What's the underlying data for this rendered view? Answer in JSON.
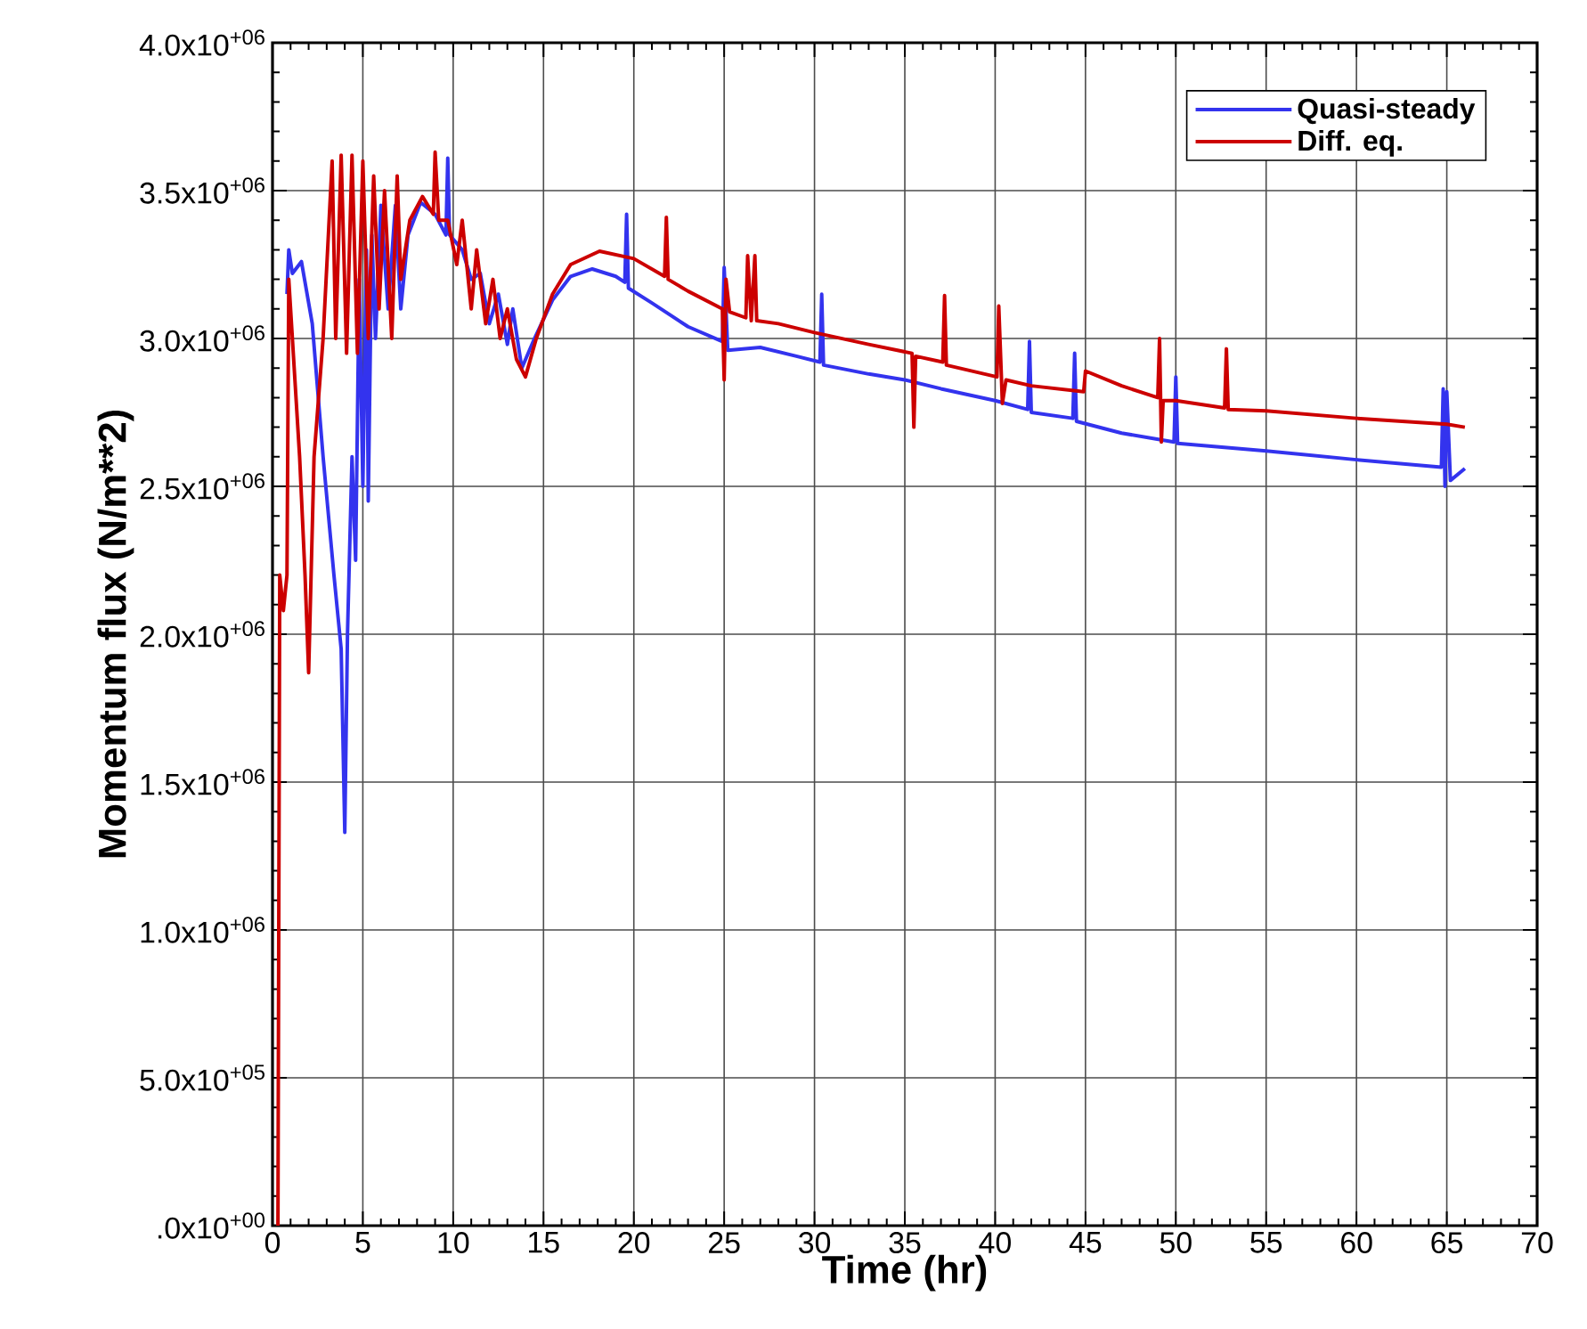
{
  "chart_data": {
    "type": "line",
    "xlabel": "Time (hr)",
    "ylabel": "Momentum flux (N/m**2)",
    "xlim": [
      0,
      70
    ],
    "ylim": [
      0,
      4000000
    ],
    "xticks": [
      0,
      5,
      10,
      15,
      20,
      25,
      30,
      35,
      40,
      45,
      50,
      55,
      60,
      65,
      70
    ],
    "yticks": [
      {
        "value": 0,
        "label": ".0x10$^{+00}$"
      },
      {
        "value": 500000,
        "label": "5.0x10$^{+05}$"
      },
      {
        "value": 1000000,
        "label": "1.0x10$^{+06}$"
      },
      {
        "value": 1500000,
        "label": "1.5x10$^{+06}$"
      },
      {
        "value": 2000000,
        "label": "2.0x10$^{+06}$"
      },
      {
        "value": 2500000,
        "label": "2.5x10$^{+06}$"
      },
      {
        "value": 3000000,
        "label": "3.0x10$^{+06}$"
      },
      {
        "value": 3500000,
        "label": "3.5x10$^{+06}$"
      },
      {
        "value": 4000000,
        "label": "4.0x10$^{+06}$"
      }
    ],
    "grid": true,
    "legend": "top right",
    "marker": "none",
    "line_style": "solid",
    "series": [
      {
        "name": "Quasi-steady",
        "color": "#3333ee",
        "x": [
          0.8,
          0.9,
          1.1,
          1.6,
          2.2,
          2.8,
          3.4,
          3.8,
          4.0,
          4.15,
          4.4,
          4.6,
          4.8,
          5.0,
          5.2,
          5.3,
          5.5,
          5.7,
          6.0,
          6.4,
          6.8,
          7.1,
          7.5,
          8.2,
          9.0,
          9.6,
          9.7,
          9.8,
          10.5,
          11,
          11.5,
          12,
          12.5,
          13,
          13.3,
          13.8,
          14.5,
          15.5,
          16.5,
          17.7,
          19.0,
          19.5,
          19.6,
          19.7,
          21,
          23,
          24.9,
          25,
          25.2,
          27,
          29,
          30.3,
          30.4,
          30.5,
          33,
          35,
          37,
          40,
          41.8,
          41.9,
          42.0,
          44.3,
          44.4,
          44.5,
          47,
          49.9,
          50,
          50.1,
          55,
          60,
          64.7,
          64.8,
          64.9,
          65.0,
          65.2,
          66
        ],
        "values": [
          3150000.0,
          3300000.0,
          3220000.0,
          3260000.0,
          3050000.0,
          2600000.0,
          2200000.0,
          1950000.0,
          1330000.0,
          2000000.0,
          2600000.0,
          2250000.0,
          3200000.0,
          2500000.0,
          3300000.0,
          2450000.0,
          3350000.0,
          3000000.0,
          3450000.0,
          3100000.0,
          3450000.0,
          3100000.0,
          3350000.0,
          3460000.0,
          3420000.0,
          3350000.0,
          3610000.0,
          3350000.0,
          3300000.0,
          3200000.0,
          3220000.0,
          3050000.0,
          3150000.0,
          2980000.0,
          3100000.0,
          2900000.0,
          3000000.0,
          3130000.0,
          3210000.0,
          3235000.0,
          3210000.0,
          3190000.0,
          3420000.0,
          3170000.0,
          3120000.0,
          3040000.0,
          2990000.0,
          3240000.0,
          2960000.0,
          2970000.0,
          2940000.0,
          2920000.0,
          3150000.0,
          2910000.0,
          2880000.0,
          2860000.0,
          2830000.0,
          2790000.0,
          2760000.0,
          2990000.0,
          2750000.0,
          2730000.0,
          2950000.0,
          2720000.0,
          2680000.0,
          2650000.0,
          2870000.0,
          2645000.0,
          2620000.0,
          2590000.0,
          2565000.0,
          2830000.0,
          2500000.0,
          2820000.0,
          2520000.0,
          2560000.0
        ]
      },
      {
        "name": "Diff. eq.",
        "color": "#cc0000",
        "x": [
          0.3,
          0.4,
          0.6,
          0.8,
          0.9,
          1.0,
          1.5,
          1.8,
          2.0,
          2.3,
          2.8,
          3.3,
          3.5,
          3.8,
          4.1,
          4.4,
          4.7,
          5.0,
          5.3,
          5.6,
          5.9,
          6.2,
          6.6,
          6.9,
          7.1,
          7.6,
          8.3,
          8.9,
          9.0,
          9.2,
          9.7,
          10.2,
          10.5,
          11,
          11.3,
          11.8,
          12.2,
          12.6,
          13,
          13.5,
          14,
          14.6,
          15.5,
          16.5,
          18.1,
          20,
          21.7,
          21.8,
          21.9,
          23,
          24.9,
          25.0,
          25.1,
          25.3,
          26.2,
          26.3,
          26.5,
          26.7,
          26.8,
          28,
          30,
          33,
          35.4,
          35.5,
          35.6,
          37.1,
          37.2,
          37.3,
          40.1,
          40.2,
          40.4,
          40.6,
          42,
          44.9,
          45.0,
          47,
          49.0,
          49.1,
          49.2,
          49.3,
          50,
          52.7,
          52.8,
          52.9,
          55,
          60,
          65,
          66
        ],
        "values": [
          0,
          2200000.0,
          2080000.0,
          2200000.0,
          3200000.0,
          3100000.0,
          2600000.0,
          2200000.0,
          1870000.0,
          2600000.0,
          3000000.0,
          3600000.0,
          3000000.0,
          3620000.0,
          2950000.0,
          3620000.0,
          2950000.0,
          3600000.0,
          3000000.0,
          3550000.0,
          3100000.0,
          3500000.0,
          3000000.0,
          3550000.0,
          3200000.0,
          3400000.0,
          3480000.0,
          3420000.0,
          3630000.0,
          3400000.0,
          3400000.0,
          3250000.0,
          3400000.0,
          3100000.0,
          3300000.0,
          3050000.0,
          3200000.0,
          3000000.0,
          3100000.0,
          2930000.0,
          2870000.0,
          3000000.0,
          3150000.0,
          3250000.0,
          3295000.0,
          3270000.0,
          3210000.0,
          3410000.0,
          3200000.0,
          3160000.0,
          3100000.0,
          2860000.0,
          3200000.0,
          3090000.0,
          3070000.0,
          3280000.0,
          3060000.0,
          3280000.0,
          3060000.0,
          3050000.0,
          3020000.0,
          2980000.0,
          2950000.0,
          2700000.0,
          2940000.0,
          2920000.0,
          3145000.0,
          2910000.0,
          2870000.0,
          3110000.0,
          2780000.0,
          2860000.0,
          2840000.0,
          2820000.0,
          2890000.0,
          2840000.0,
          2800000.0,
          3000000.0,
          2650000.0,
          2790000.0,
          2790000.0,
          2765000.0,
          2965000.0,
          2760000.0,
          2755000.0,
          2730000.0,
          2710000.0,
          2700000.0
        ]
      }
    ]
  }
}
